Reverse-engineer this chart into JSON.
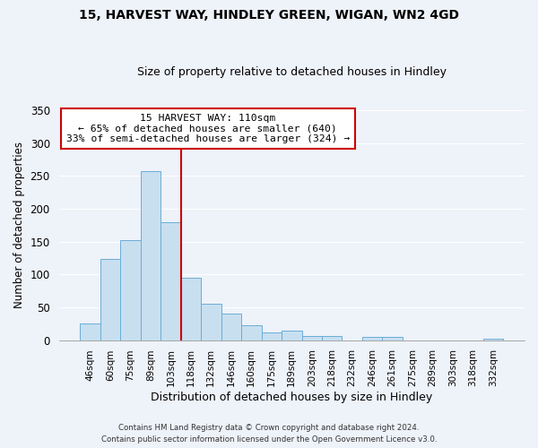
{
  "title1": "15, HARVEST WAY, HINDLEY GREEN, WIGAN, WN2 4GD",
  "title2": "Size of property relative to detached houses in Hindley",
  "xlabel": "Distribution of detached houses by size in Hindley",
  "ylabel": "Number of detached properties",
  "categories": [
    "46sqm",
    "60sqm",
    "75sqm",
    "89sqm",
    "103sqm",
    "118sqm",
    "132sqm",
    "146sqm",
    "160sqm",
    "175sqm",
    "189sqm",
    "203sqm",
    "218sqm",
    "232sqm",
    "246sqm",
    "261sqm",
    "275sqm",
    "289sqm",
    "303sqm",
    "318sqm",
    "332sqm"
  ],
  "values": [
    25,
    123,
    152,
    257,
    180,
    95,
    55,
    40,
    22,
    12,
    14,
    6,
    6,
    0,
    5,
    5,
    0,
    0,
    0,
    0,
    2
  ],
  "bar_color": "#c8dff0",
  "bar_edge_color": "#6aaed6",
  "vline_x": 4.5,
  "vline_color": "#cc0000",
  "annotation_title": "15 HARVEST WAY: 110sqm",
  "annotation_line1": "← 65% of detached houses are smaller (640)",
  "annotation_line2": "33% of semi-detached houses are larger (324) →",
  "annotation_box_color": "#ffffff",
  "annotation_border_color": "#cc0000",
  "ylim": [
    0,
    350
  ],
  "yticks": [
    0,
    50,
    100,
    150,
    200,
    250,
    300,
    350
  ],
  "footer1": "Contains HM Land Registry data © Crown copyright and database right 2024.",
  "footer2": "Contains public sector information licensed under the Open Government Licence v3.0.",
  "background_color": "#eef2f9",
  "grid_color": "#ffffff",
  "title1_fontsize": 10,
  "title2_fontsize": 9,
  "ylabel_fontsize": 8.5,
  "xlabel_fontsize": 9
}
